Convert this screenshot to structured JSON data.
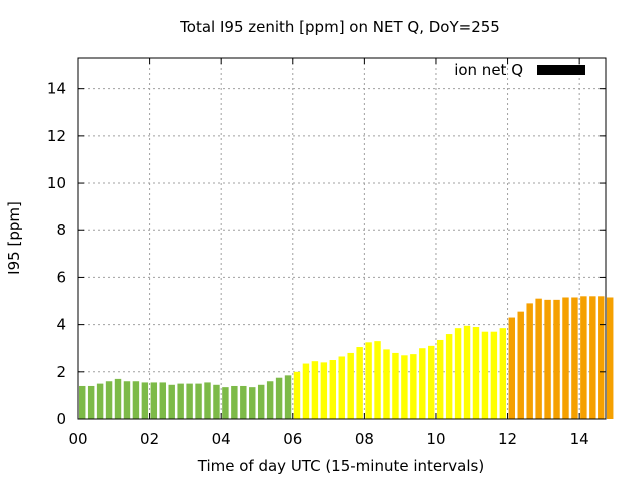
{
  "chart_data": {
    "type": "bar",
    "title": "Total I95 zenith [ppm] on NET Q, DoY=255",
    "xlabel": "Time of day UTC (15-minute intervals)",
    "ylabel": "I95 [ppm]",
    "x_unit": "hours UTC",
    "bar_interval_hours": 0.25,
    "xlim": [
      0,
      14.75
    ],
    "ylim": [
      0,
      15.3
    ],
    "x_ticks": [
      0,
      2,
      4,
      6,
      8,
      10,
      12,
      14
    ],
    "x_tick_labels": [
      "00",
      "02",
      "04",
      "06",
      "08",
      "10",
      "12",
      "14"
    ],
    "y_ticks": [
      0,
      2,
      4,
      6,
      8,
      10,
      12,
      14
    ],
    "y_tick_labels": [
      "0",
      "2",
      "4",
      "6",
      "8",
      "10",
      "12",
      "14"
    ],
    "grid": true,
    "legend": {
      "position": "top-right",
      "entries": [
        {
          "label": "ion net Q",
          "color": "#000000"
        }
      ]
    },
    "series": [
      {
        "color": "#7dba48",
        "x_start": 0,
        "values": [
          1.4,
          1.4,
          1.5,
          1.6,
          1.7,
          1.6,
          1.6,
          1.55,
          1.55,
          1.55,
          1.45,
          1.5,
          1.5,
          1.5,
          1.55,
          1.45,
          1.35,
          1.4,
          1.4,
          1.35,
          1.45,
          1.6,
          1.75,
          1.85
        ]
      },
      {
        "color": "#ffff00",
        "x_start": 6,
        "values": [
          2.0,
          2.35,
          2.45,
          2.4,
          2.5,
          2.65,
          2.8,
          3.05,
          3.25,
          3.3,
          2.95,
          2.8,
          2.7,
          2.75,
          3.0,
          3.1,
          3.35,
          3.6,
          3.85,
          3.95,
          3.9,
          3.7,
          3.7,
          3.85
        ]
      },
      {
        "color": "#f5a000",
        "x_start": 12,
        "values": [
          4.3,
          4.55,
          4.9,
          5.1,
          5.05,
          5.05,
          5.15,
          5.15,
          5.2,
          5.2,
          5.2,
          5.15
        ]
      }
    ]
  }
}
